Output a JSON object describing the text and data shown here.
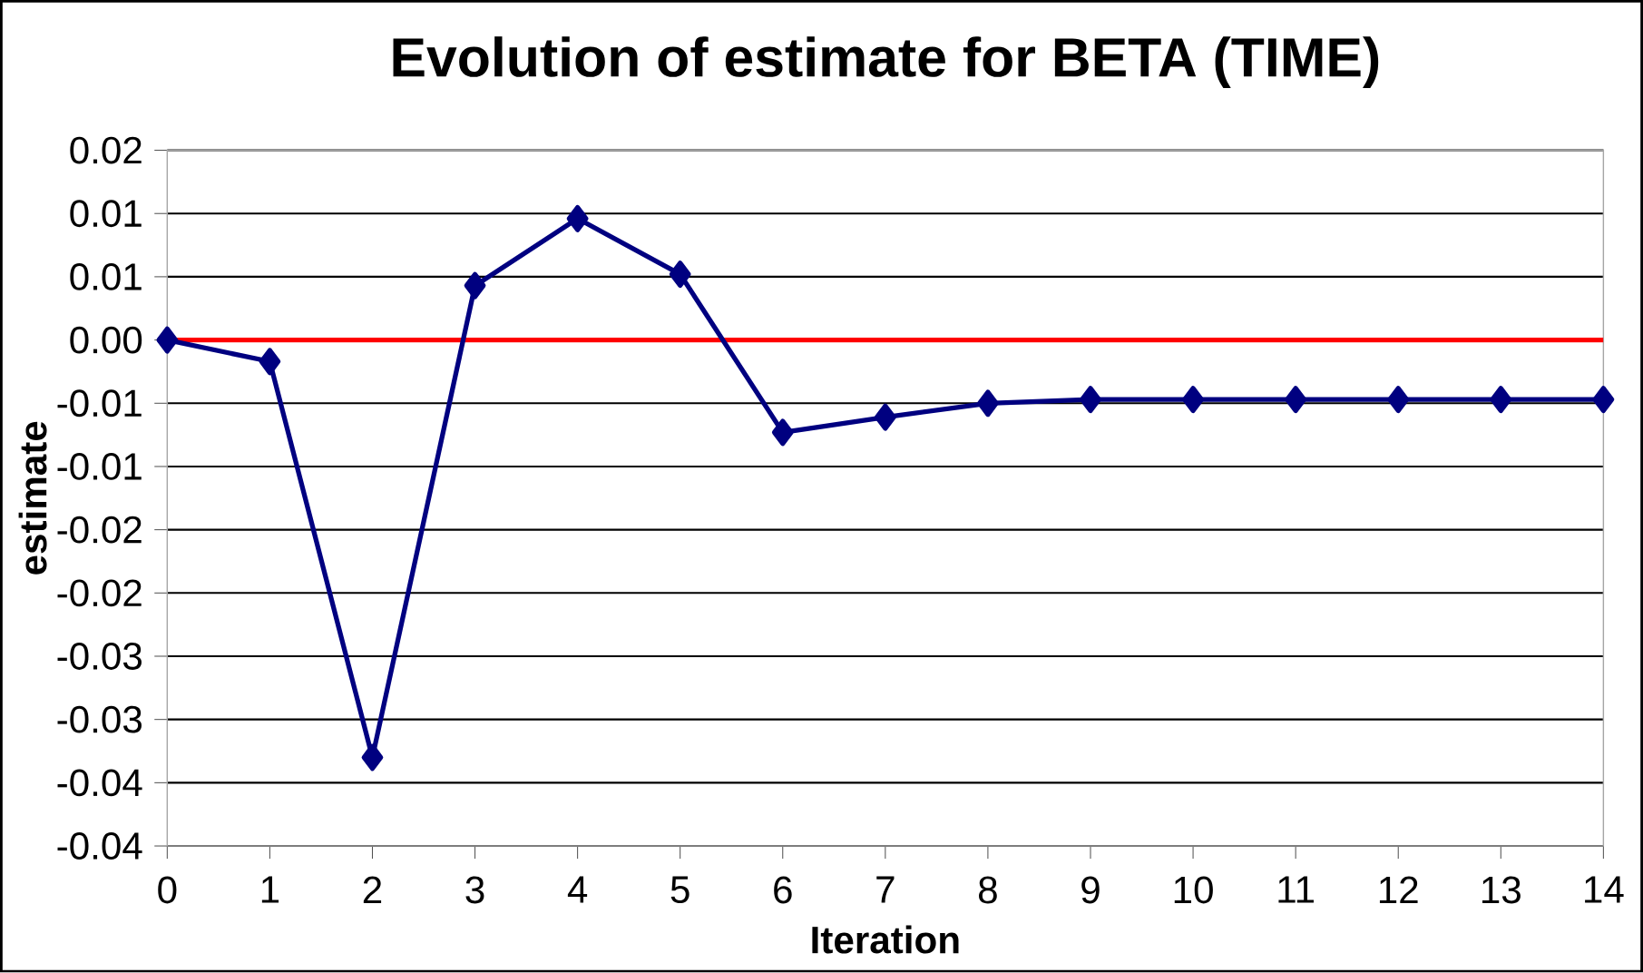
{
  "chart_data": {
    "type": "line",
    "title": "Evolution of estimate for BETA (TIME)",
    "xlabel": "Iteration",
    "ylabel": "estimate",
    "x": [
      0,
      1,
      2,
      3,
      4,
      5,
      6,
      7,
      8,
      9,
      10,
      11,
      12,
      13,
      14
    ],
    "series": [
      {
        "color": "#000080",
        "values": [
          0,
          -0.0017,
          -0.033,
          0.0043,
          0.0096,
          0.0052,
          -0.0073,
          -0.0061,
          -0.005,
          -0.0047,
          -0.0047,
          -0.0047,
          -0.0047,
          -0.0047,
          -0.0047
        ]
      }
    ],
    "xlim": [
      0,
      14
    ],
    "xticks": [
      0,
      1,
      2,
      3,
      4,
      5,
      6,
      7,
      8,
      9,
      10,
      11,
      12,
      13,
      14
    ],
    "ylim": [
      -0.04,
      0.015
    ],
    "yticks": [
      {
        "value": 0.015,
        "label": "0.02"
      },
      {
        "value": 0.01,
        "label": "0.01"
      },
      {
        "value": 0.005,
        "label": "0.01"
      },
      {
        "value": 0,
        "label": "0.00"
      },
      {
        "value": -0.005,
        "label": "-0.01"
      },
      {
        "value": -0.01,
        "label": "-0.01"
      },
      {
        "value": -0.015,
        "label": "-0.02"
      },
      {
        "value": -0.02,
        "label": "-0.02"
      },
      {
        "value": -0.025,
        "label": "-0.03"
      },
      {
        "value": -0.03,
        "label": "-0.03"
      },
      {
        "value": -0.035,
        "label": "-0.04"
      },
      {
        "value": -0.04,
        "label": "-0.04"
      }
    ],
    "ref_lines": [
      {
        "axis": "y",
        "value": 0,
        "color": "#ff0000"
      }
    ],
    "grid": "y",
    "marker": "diamond",
    "line_style": "solid"
  }
}
